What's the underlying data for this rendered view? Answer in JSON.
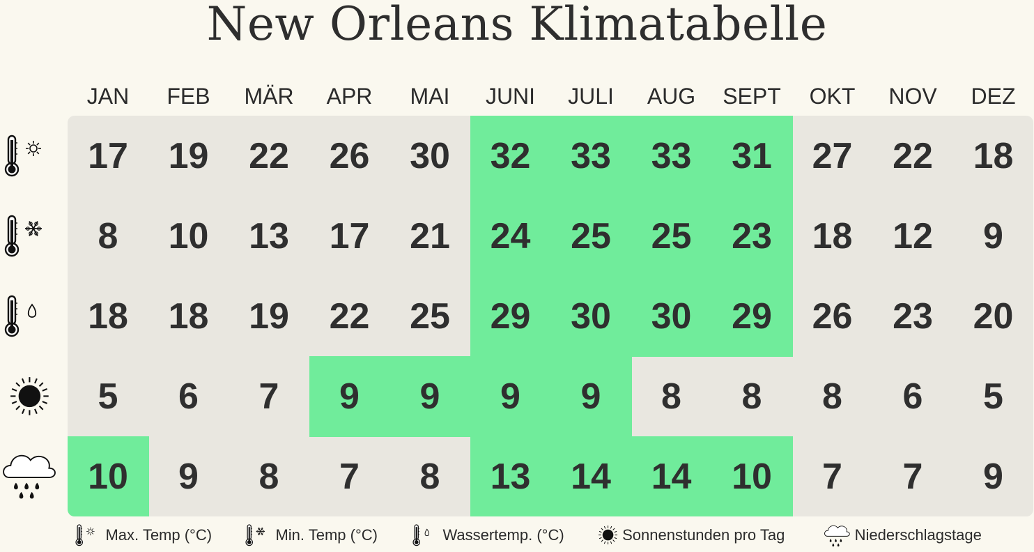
{
  "title": "New Orleans Klimatabelle",
  "chart_data": {
    "type": "table",
    "title": "New Orleans Klimatabelle",
    "categories": [
      "JAN",
      "FEB",
      "MÄR",
      "APR",
      "MAI",
      "JUNI",
      "JULI",
      "AUG",
      "SEPT",
      "OKT",
      "NOV",
      "DEZ"
    ],
    "series": [
      {
        "name": "Max. Temp (°C)",
        "icon": "thermometer-sun-icon",
        "values": [
          17,
          19,
          22,
          26,
          30,
          32,
          33,
          33,
          31,
          27,
          22,
          18
        ],
        "highlight": [
          false,
          false,
          false,
          false,
          false,
          true,
          true,
          true,
          true,
          false,
          false,
          false
        ]
      },
      {
        "name": "Min. Temp (°C)",
        "icon": "thermometer-snowflake-icon",
        "values": [
          8,
          10,
          13,
          17,
          21,
          24,
          25,
          25,
          23,
          18,
          12,
          9
        ],
        "highlight": [
          false,
          false,
          false,
          false,
          false,
          true,
          true,
          true,
          true,
          false,
          false,
          false
        ]
      },
      {
        "name": "Wassertemp. (°C)",
        "icon": "thermometer-drop-icon",
        "values": [
          18,
          18,
          19,
          22,
          25,
          29,
          30,
          30,
          29,
          26,
          23,
          20
        ],
        "highlight": [
          false,
          false,
          false,
          false,
          false,
          true,
          true,
          true,
          true,
          false,
          false,
          false
        ]
      },
      {
        "name": "Sonnenstunden pro Tag",
        "icon": "sun-icon",
        "values": [
          5,
          6,
          7,
          9,
          9,
          9,
          9,
          8,
          8,
          8,
          6,
          5
        ],
        "highlight": [
          false,
          false,
          false,
          true,
          true,
          true,
          true,
          false,
          false,
          false,
          false,
          false
        ]
      },
      {
        "name": "Niederschlagstage",
        "icon": "rain-cloud-icon",
        "values": [
          10,
          9,
          8,
          7,
          8,
          13,
          14,
          14,
          10,
          7,
          7,
          9
        ],
        "highlight": [
          true,
          false,
          false,
          false,
          false,
          true,
          true,
          true,
          true,
          false,
          false,
          false
        ]
      }
    ],
    "colors": {
      "highlight": "#70ec9b",
      "base": "#e9e7e0",
      "background": "#faf8ef"
    }
  }
}
